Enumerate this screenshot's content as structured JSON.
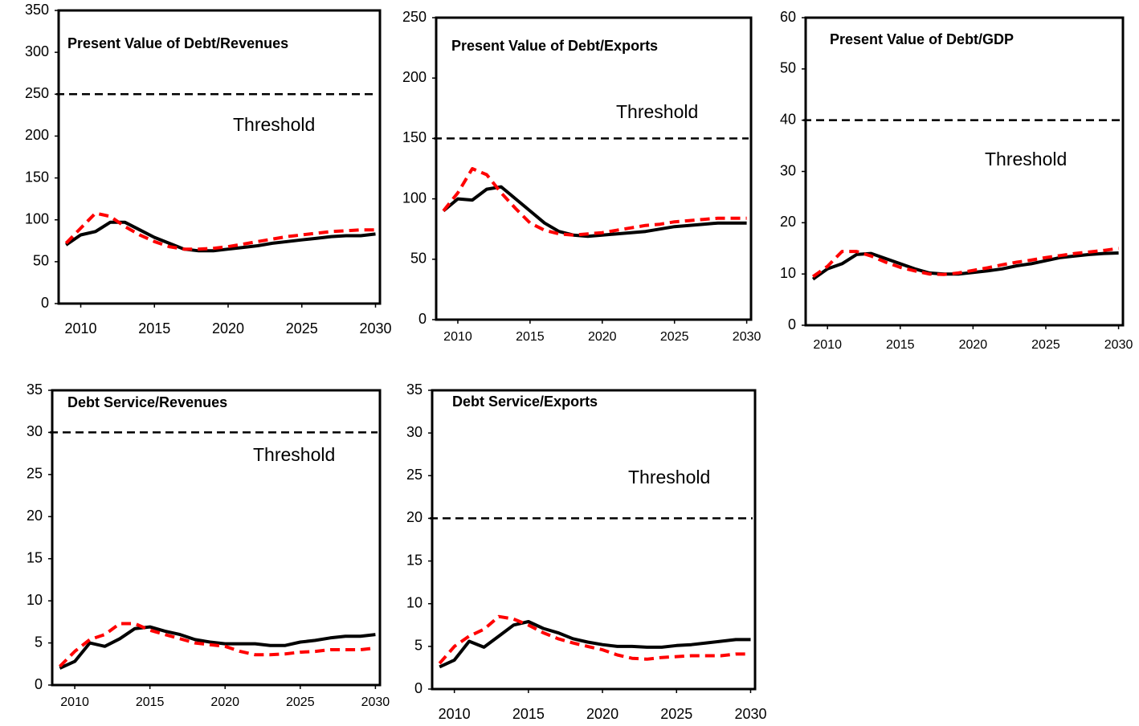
{
  "chart_data": [
    {
      "type": "line",
      "title": "Present Value of Debt/Revenues",
      "annotation": "Threshold",
      "threshold": 250,
      "x": [
        2009,
        2010,
        2011,
        2012,
        2013,
        2014,
        2015,
        2016,
        2017,
        2018,
        2019,
        2020,
        2021,
        2022,
        2023,
        2024,
        2025,
        2026,
        2027,
        2028,
        2029,
        2030
      ],
      "xlim": [
        2008.5,
        2030.3
      ],
      "xticks": [
        2010,
        2015,
        2020,
        2025,
        2030
      ],
      "ylim": [
        0,
        350
      ],
      "yticks": [
        0,
        50,
        100,
        150,
        200,
        250,
        300,
        350
      ],
      "series": [
        {
          "color": "#000000",
          "style": "solid",
          "values": [
            70,
            82,
            86,
            97,
            97,
            88,
            79,
            72,
            65,
            63,
            63,
            65,
            67,
            69,
            72,
            74,
            76,
            78,
            80,
            81,
            81,
            83
          ]
        },
        {
          "color": "#ff0000",
          "style": "dashed",
          "values": [
            72,
            90,
            108,
            104,
            92,
            82,
            74,
            68,
            65,
            65,
            66,
            68,
            71,
            74,
            77,
            80,
            82,
            84,
            86,
            87,
            88,
            88
          ]
        }
      ]
    },
    {
      "type": "line",
      "title": "Present Value of Debt/Exports",
      "annotation": "Threshold",
      "threshold": 150,
      "x": [
        2009,
        2010,
        2011,
        2012,
        2013,
        2014,
        2015,
        2016,
        2017,
        2018,
        2019,
        2020,
        2021,
        2022,
        2023,
        2024,
        2025,
        2026,
        2027,
        2028,
        2029,
        2030
      ],
      "xlim": [
        2008.5,
        2030.3
      ],
      "xticks": [
        2010,
        2015,
        2020,
        2025,
        2030
      ],
      "ylim": [
        0,
        250
      ],
      "yticks": [
        0,
        50,
        100,
        150,
        200,
        250
      ],
      "series": [
        {
          "color": "#000000",
          "style": "solid",
          "values": [
            90,
            100,
            99,
            108,
            110,
            100,
            90,
            80,
            73,
            70,
            69,
            70,
            71,
            72,
            73,
            75,
            77,
            78,
            79,
            80,
            80,
            80
          ]
        },
        {
          "color": "#ff0000",
          "style": "dashed",
          "values": [
            90,
            105,
            125,
            120,
            105,
            92,
            80,
            74,
            71,
            70,
            71,
            72,
            74,
            76,
            78,
            79,
            81,
            82,
            83,
            84,
            84,
            84
          ]
        }
      ]
    },
    {
      "type": "line",
      "title": "Present Value of Debt/GDP",
      "annotation": "Threshold",
      "threshold": 40,
      "x": [
        2009,
        2010,
        2011,
        2012,
        2013,
        2014,
        2015,
        2016,
        2017,
        2018,
        2019,
        2020,
        2021,
        2022,
        2023,
        2024,
        2025,
        2026,
        2027,
        2028,
        2029,
        2030
      ],
      "xlim": [
        2008.5,
        2030.3
      ],
      "xticks": [
        2010,
        2015,
        2020,
        2025,
        2030
      ],
      "ylim": [
        0,
        60
      ],
      "yticks": [
        0,
        10,
        20,
        30,
        40,
        50,
        60
      ],
      "series": [
        {
          "color": "#000000",
          "style": "solid",
          "values": [
            9,
            11,
            12,
            13.8,
            14,
            13,
            12,
            11,
            10.2,
            10,
            10,
            10.3,
            10.6,
            11,
            11.6,
            12,
            12.6,
            13.2,
            13.5,
            13.8,
            14,
            14.1
          ]
        },
        {
          "color": "#ff0000",
          "style": "dashed",
          "values": [
            9.5,
            11.5,
            14.4,
            14.4,
            13.5,
            12.3,
            11.3,
            10.6,
            10,
            9.9,
            10.2,
            10.7,
            11.2,
            11.8,
            12.3,
            12.7,
            13.2,
            13.6,
            14,
            14.3,
            14.6,
            15
          ]
        }
      ]
    },
    {
      "type": "line",
      "title": "Debt Service/Revenues",
      "annotation": "Threshold",
      "threshold": 30,
      "x": [
        2009,
        2010,
        2011,
        2012,
        2013,
        2014,
        2015,
        2016,
        2017,
        2018,
        2019,
        2020,
        2021,
        2022,
        2023,
        2024,
        2025,
        2026,
        2027,
        2028,
        2029,
        2030
      ],
      "xlim": [
        2008.5,
        2030.3
      ],
      "xticks": [
        2010,
        2015,
        2020,
        2025,
        2030
      ],
      "ylim": [
        0,
        35
      ],
      "yticks": [
        0,
        5,
        10,
        15,
        20,
        25,
        30,
        35
      ],
      "series": [
        {
          "color": "#000000",
          "style": "solid",
          "values": [
            2,
            2.8,
            5,
            4.6,
            5.5,
            6.7,
            6.9,
            6.4,
            6,
            5.4,
            5.1,
            4.9,
            4.9,
            4.9,
            4.7,
            4.7,
            5.1,
            5.3,
            5.6,
            5.8,
            5.8,
            6
          ]
        },
        {
          "color": "#ff0000",
          "style": "dashed",
          "values": [
            2.2,
            4,
            5.4,
            6,
            7.3,
            7.3,
            6.5,
            6,
            5.5,
            5,
            4.8,
            4.6,
            4,
            3.6,
            3.6,
            3.7,
            3.9,
            4,
            4.2,
            4.2,
            4.2,
            4.4
          ]
        }
      ]
    },
    {
      "type": "line",
      "title": "Debt Service/Exports",
      "annotation": "Threshold",
      "threshold": 20,
      "x": [
        2009,
        2010,
        2011,
        2012,
        2013,
        2014,
        2015,
        2016,
        2017,
        2018,
        2019,
        2020,
        2021,
        2022,
        2023,
        2024,
        2025,
        2026,
        2027,
        2028,
        2029,
        2030
      ],
      "xlim": [
        2008.5,
        2030.3
      ],
      "xticks": [
        2010,
        2015,
        2020,
        2025,
        2030
      ],
      "ylim": [
        0,
        35
      ],
      "yticks": [
        0,
        5,
        10,
        15,
        20,
        25,
        30,
        35
      ],
      "series": [
        {
          "color": "#000000",
          "style": "solid",
          "values": [
            2.6,
            3.4,
            5.6,
            4.9,
            6.2,
            7.5,
            7.9,
            7.1,
            6.6,
            5.9,
            5.5,
            5.2,
            5,
            5,
            4.9,
            4.9,
            5.1,
            5.2,
            5.4,
            5.6,
            5.8,
            5.8
          ]
        },
        {
          "color": "#ff0000",
          "style": "dashed",
          "values": [
            3,
            5,
            6.2,
            7,
            8.5,
            8.2,
            7.5,
            6.6,
            5.9,
            5.4,
            5,
            4.6,
            4,
            3.6,
            3.5,
            3.7,
            3.8,
            3.9,
            3.9,
            3.9,
            4.1,
            4.1
          ]
        }
      ]
    }
  ]
}
